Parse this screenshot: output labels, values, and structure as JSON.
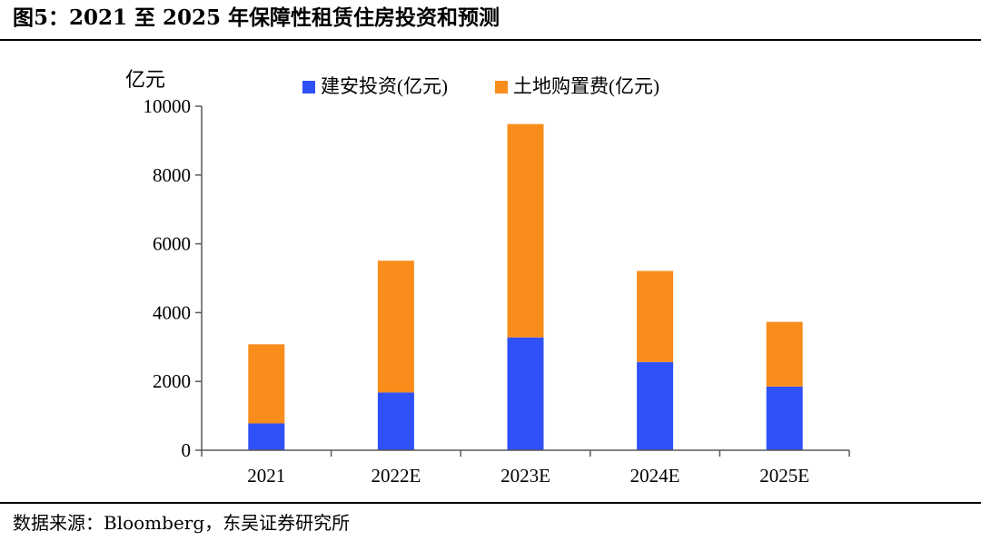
{
  "figure": {
    "title": "图5：2021 至 2025 年保障性租赁住房投资和预测",
    "source": "数据来源：Bloomberg，东吴证券研究所"
  },
  "chart_data": {
    "type": "bar",
    "stacked": true,
    "title": "",
    "ylabel": "亿元",
    "xlabel": "",
    "categories": [
      "2021",
      "2022E",
      "2023E",
      "2024E",
      "2025E"
    ],
    "ylim": [
      0,
      10000
    ],
    "yticks": [
      0,
      2000,
      4000,
      6000,
      8000,
      10000
    ],
    "grid": false,
    "legend_position": "top",
    "series": [
      {
        "name": "建安投资(亿元)",
        "color": "#3050F8",
        "values": [
          780,
          1680,
          3280,
          2560,
          1850
        ]
      },
      {
        "name": "土地购置费(亿元)",
        "color": "#F98D1C",
        "values": [
          2300,
          3830,
          6200,
          2650,
          1880
        ]
      }
    ]
  }
}
